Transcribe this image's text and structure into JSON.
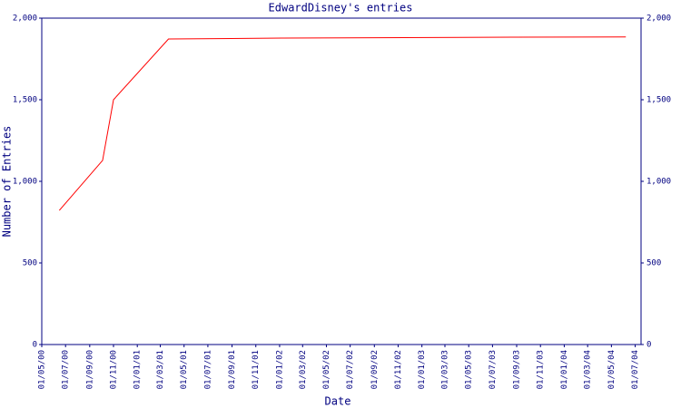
{
  "chart_data": {
    "type": "line",
    "title": "EdwardDisney's entries",
    "x_label": "Date",
    "y_label": "Number of Entries",
    "x": [
      "15/06/00",
      "04/10/00",
      "01/11/00",
      "22/03/01",
      "07/01/02",
      "22/08/03",
      "07/06/04"
    ],
    "series": [
      {
        "color": "#ff0000",
        "values": [
          822,
          1128,
          1500,
          1872,
          1878,
          1883,
          1885
        ]
      }
    ],
    "xlim": [
      "01/05/00",
      "16/07/04"
    ],
    "xticks": [
      "01/05/00",
      "01/07/00",
      "01/09/00",
      "01/11/00",
      "01/01/01",
      "01/03/01",
      "01/05/01",
      "01/07/01",
      "01/09/01",
      "01/11/01",
      "01/01/02",
      "01/03/02",
      "01/05/02",
      "01/07/02",
      "01/09/02",
      "01/11/02",
      "01/01/03",
      "01/03/03",
      "01/05/03",
      "01/07/03",
      "01/09/03",
      "01/11/03",
      "01/01/04",
      "01/03/04",
      "01/05/04",
      "01/07/04"
    ],
    "ylim": [
      0,
      2000
    ],
    "yticks": [
      0,
      500,
      {
        "value": 1000,
        "label": "1,000"
      },
      {
        "value": 1500,
        "label": "1,500"
      },
      {
        "value": 2000,
        "label": "2,000"
      }
    ],
    "y2lim": [
      0,
      2000
    ],
    "y2ticks": [
      0,
      500,
      {
        "value": 1000,
        "label": "1,000"
      },
      {
        "value": 1500,
        "label": "1,500"
      },
      {
        "value": 2000,
        "label": "2,000"
      }
    ],
    "axis_color": "#000080"
  }
}
